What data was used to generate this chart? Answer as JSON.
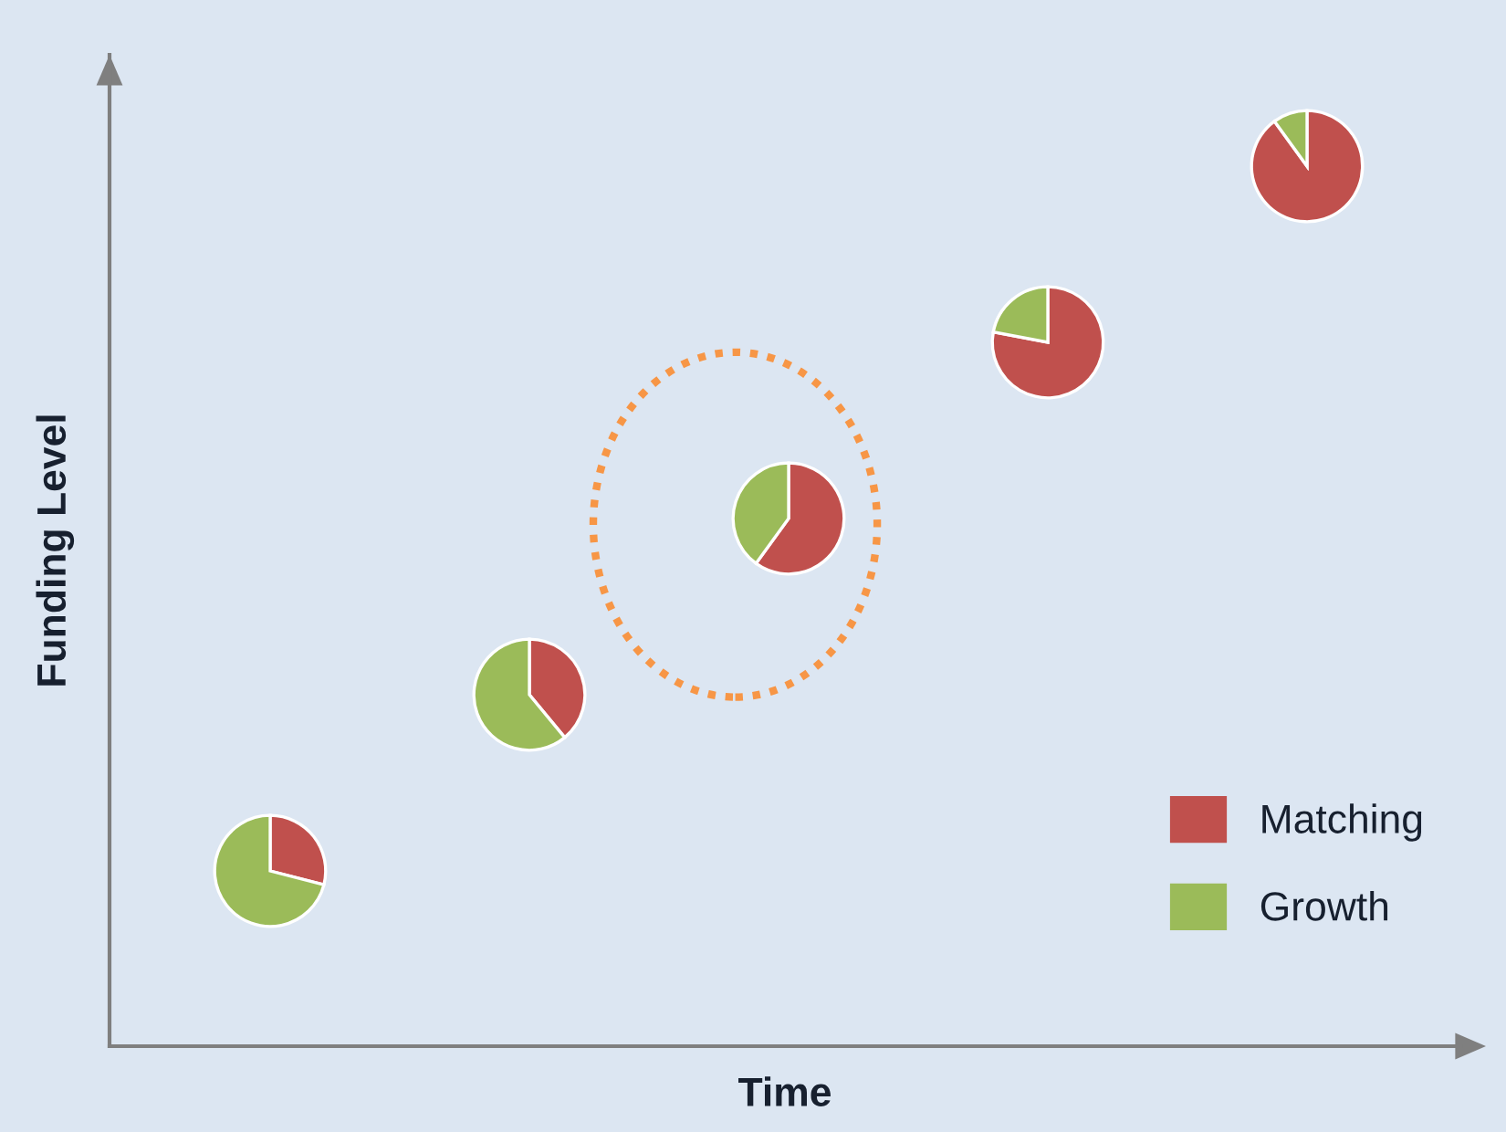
{
  "chart_data": [
    {
      "type": "other",
      "xlabel": "Time",
      "ylabel": "Funding Level",
      "categories": [
        "Matching",
        "Growth"
      ],
      "colors": [
        "#c0504d",
        "#9bbb59"
      ]
    },
    {
      "type": "pie",
      "values": [
        29,
        71
      ],
      "colors": [
        "#c0504d",
        "#9bbb59"
      ]
    },
    {
      "type": "pie",
      "values": [
        39,
        61
      ],
      "colors": [
        "#c0504d",
        "#9bbb59"
      ]
    },
    {
      "type": "pie",
      "values": [
        60,
        40
      ],
      "colors": [
        "#c0504d",
        "#9bbb59"
      ]
    },
    {
      "type": "pie",
      "values": [
        78,
        22
      ],
      "colors": [
        "#c0504d",
        "#9bbb59"
      ]
    },
    {
      "type": "pie",
      "values": [
        90,
        10
      ],
      "colors": [
        "#c0504d",
        "#9bbb59"
      ]
    }
  ]
}
